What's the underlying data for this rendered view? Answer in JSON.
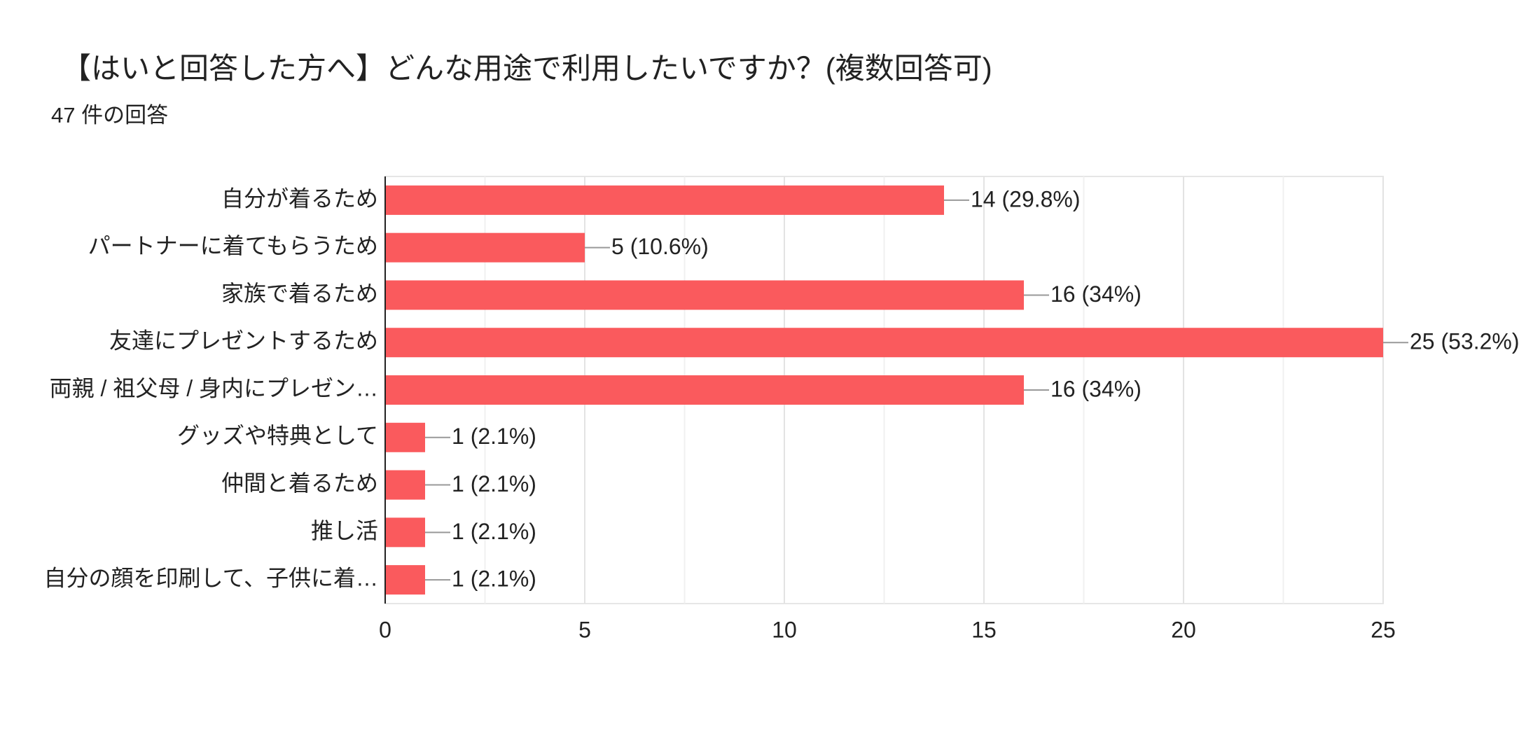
{
  "chart_data": {
    "type": "hbar",
    "title": "【はいと回答した方へ】どんな用途で利用したいですか？(複数回答可)",
    "subtitle": "47 件の回答",
    "categories": [
      "自分が着るため",
      "パートナーに着てもらうため",
      "家族で着るため",
      "友達にプレゼントするため",
      "両親 / 祖父母 / 身内にプレゼン…",
      "グッズや特典として",
      "仲間と着るため",
      "推し活",
      "自分の顔を印刷して、子供に着…"
    ],
    "values": [
      14,
      5,
      16,
      25,
      16,
      1,
      1,
      1,
      1
    ],
    "value_labels": [
      "14 (29.8%)",
      "5 (10.6%)",
      "16 (34%)",
      "25 (53.2%)",
      "16 (34%)",
      "1 (2.1%)",
      "1 (2.1%)",
      "1 (2.1%)",
      "1 (2.1%)"
    ],
    "color": "#fa5a5d",
    "xlim": [
      0,
      25
    ],
    "xticks": [
      0,
      5,
      10,
      15,
      20,
      25
    ],
    "grid": true,
    "minor_grid": true
  }
}
